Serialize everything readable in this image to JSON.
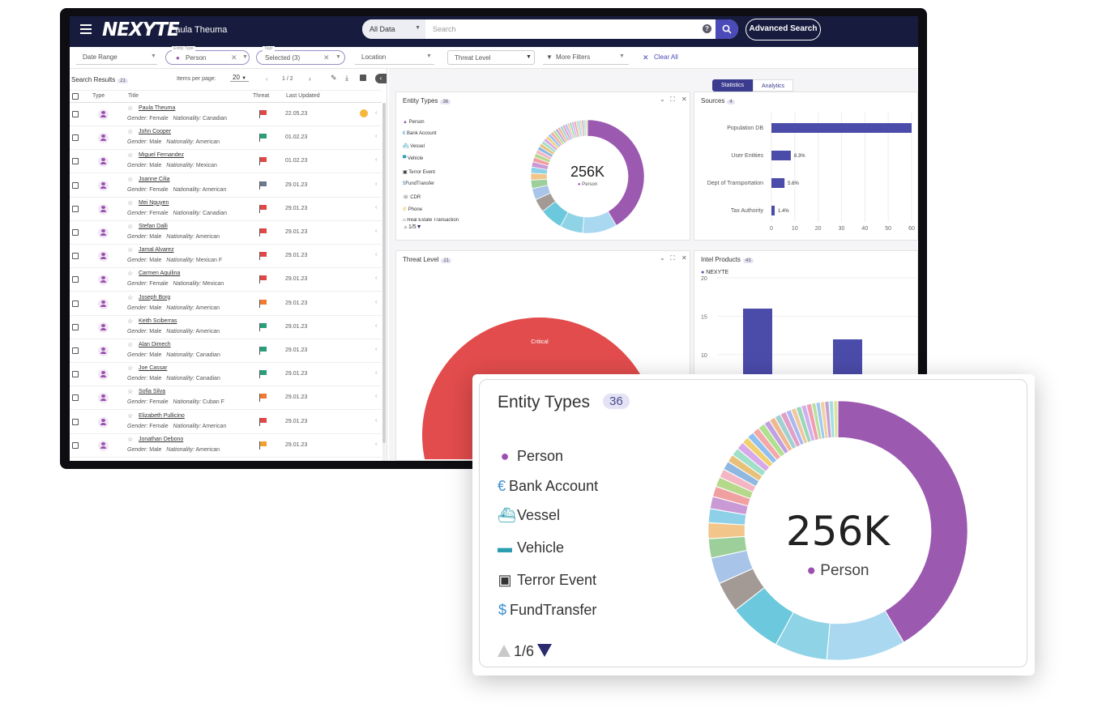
{
  "app": {
    "logo": "NEXYTE",
    "user": "Paula Theuma"
  },
  "search": {
    "scope": "All Data",
    "placeholder": "Search",
    "help": "?",
    "advanced": "Advanced Search"
  },
  "filters": {
    "date_range": "Date Range",
    "entity_type_label": "Entity Type",
    "entity_type_value": "Person",
    "tags_label": "Tags",
    "tags_value": "Selected (3)",
    "location": "Location",
    "threat_level": "Threat Level",
    "more_filters": "More Filters",
    "clear_all": "Clear All"
  },
  "results": {
    "title": "Search Results",
    "count": "21",
    "items_per_page_label": "Items per page:",
    "items_per_page": "20",
    "page": "1 / 2",
    "columns": [
      "Type",
      "Title",
      "Threat",
      "Last Updated"
    ],
    "rows": [
      {
        "name": "Paula Theuma",
        "gender": "Female",
        "nationality": "Canadian",
        "tail": "",
        "date": "22.05.23",
        "threat_color": "#e04848"
      },
      {
        "name": "John Cooper",
        "gender": "Male",
        "nationality": "American",
        "tail": "",
        "date": "01.02.23",
        "threat_color": "#2a9d7a"
      },
      {
        "name": "Miguel Fernandez",
        "gender": "Male",
        "nationality": "Mexican",
        "tail": "",
        "date": "01.02.23",
        "threat_color": "#e04848"
      },
      {
        "name": "Joanne Cilia",
        "gender": "Female",
        "nationality": "American",
        "tail": "",
        "date": "29.01.23",
        "threat_color": "#6b7a8f"
      },
      {
        "name": "Mei Nguyen",
        "gender": "Female",
        "nationality": "Canadian",
        "tail": "",
        "date": "29.01.23",
        "threat_color": "#e04848"
      },
      {
        "name": "Stefan Dalli",
        "gender": "Male",
        "nationality": "American",
        "tail": "",
        "date": "29.01.23",
        "threat_color": "#e04848"
      },
      {
        "name": "Jamal Alvarez",
        "gender": "Male",
        "nationality": "Mexican",
        "tail": "F",
        "date": "29.01.23",
        "threat_color": "#e04848"
      },
      {
        "name": "Carmen Aquilina",
        "gender": "Female",
        "nationality": "Mexican",
        "tail": "",
        "date": "29.01.23",
        "threat_color": "#e04848"
      },
      {
        "name": "Joseph Borg",
        "gender": "Male",
        "nationality": "American",
        "tail": "",
        "date": "29.01.23",
        "threat_color": "#f07a30"
      },
      {
        "name": "Keith Sciberras",
        "gender": "Male",
        "nationality": "American",
        "tail": "",
        "date": "29.01.23",
        "threat_color": "#2a9d7a"
      },
      {
        "name": "Alan Dimech",
        "gender": "Male",
        "nationality": "Canadian",
        "tail": "",
        "date": "29.01.23",
        "threat_color": "#2a9d7a"
      },
      {
        "name": "Joe Cassar",
        "gender": "Male",
        "nationality": "Canadian",
        "tail": "",
        "date": "29.01.23",
        "threat_color": "#2a9d7a"
      },
      {
        "name": "Sofia Silva",
        "gender": "Female",
        "nationality": "Cuban",
        "tail": "F",
        "date": "29.01.23",
        "threat_color": "#f07a30"
      },
      {
        "name": "Elizabeth Pullicino",
        "gender": "Female",
        "nationality": "American",
        "tail": "",
        "date": "29.01.23",
        "threat_color": "#e04848"
      },
      {
        "name": "Jonathan Debono",
        "gender": "Male",
        "nationality": "American",
        "tail": "",
        "date": "29.01.23",
        "threat_color": "#f0a030"
      }
    ],
    "labels": {
      "gender": "Gender:",
      "nationality": "Nationality:"
    }
  },
  "dashboard": {
    "tabs": [
      "Statistics",
      "Analytics"
    ],
    "entity_card": {
      "title": "Entity Types",
      "count": "36",
      "legend": [
        "Person",
        "Bank Account",
        "Vessel",
        "Vehicle",
        "Terror Event",
        "FundTransfer",
        "CDR",
        "Phone",
        "Real Estate Transaction"
      ],
      "center_value": "256K",
      "center_label": "Person",
      "pager": "1/5"
    },
    "sources_card": {
      "title": "Sources",
      "count": "4"
    },
    "threat_card": {
      "title": "Threat Level",
      "count": "21",
      "segment_label": "Critical"
    },
    "intel_card": {
      "title": "Intel Products",
      "count": "43",
      "legend": "NEXYTE"
    }
  },
  "zoom": {
    "title": "Entity Types",
    "count": "36",
    "legend": [
      "Person",
      "Bank Account",
      "Vessel",
      "Vehicle",
      "Terror Event",
      "FundTransfer"
    ],
    "center_value": "256K",
    "center_label": "Person",
    "pager": "1/6"
  },
  "chart_data": [
    {
      "type": "bar",
      "title": "Sources",
      "orientation": "horizontal",
      "categories": [
        "Population DB",
        "User Entities",
        "Dept of Transportation",
        "Tax Authority"
      ],
      "values": [
        60,
        8.3,
        5.6,
        1.4
      ],
      "data_labels": [
        "",
        "8.3%",
        "5.6%",
        "1.4%"
      ],
      "xlim": [
        0,
        60
      ],
      "xticks": [
        0,
        10,
        20,
        30,
        40,
        50,
        60
      ],
      "color": "#4b4baa"
    },
    {
      "type": "bar",
      "title": "Intel Products",
      "series": [
        {
          "name": "NEXYTE",
          "values": [
            16,
            12
          ]
        }
      ],
      "yticks": [
        10,
        15,
        20
      ],
      "ylim": [
        10,
        20
      ],
      "color": "#4b4baa"
    },
    {
      "type": "pie",
      "title": "Entity Types",
      "donut": true,
      "slices": [
        {
          "label": "Person",
          "value": 38,
          "color": "#9b59b0"
        },
        {
          "label": "s2",
          "value": 9,
          "color": "#a9d8f0"
        },
        {
          "label": "s3",
          "value": 6,
          "color": "#8fd4e6"
        },
        {
          "label": "s4",
          "value": 6,
          "color": "#6cc8dc"
        },
        {
          "label": "s5",
          "value": 3.5,
          "color": "#a39a96"
        },
        {
          "label": "s6",
          "value": 3,
          "color": "#a8c4e8"
        },
        {
          "label": "s7",
          "value": 2.2,
          "color": "#9ccf9a"
        },
        {
          "label": "s8",
          "value": 1.8,
          "color": "#f2c58a"
        },
        {
          "label": "s9",
          "value": 1.6,
          "color": "#8dd0e8"
        },
        {
          "label": "s10",
          "value": 1.4,
          "color": "#c99ad6"
        },
        {
          "label": "s11",
          "value": 1.2,
          "color": "#f0a0a0"
        },
        {
          "label": "s12",
          "value": 1.1,
          "color": "#b5d88a"
        },
        {
          "label": "s13",
          "value": 1.0,
          "color": "#f4b6c2"
        },
        {
          "label": "s14",
          "value": 1.0,
          "color": "#8fb8e0"
        },
        {
          "label": "s15",
          "value": 0.9,
          "color": "#e8c07a"
        },
        {
          "label": "s16",
          "value": 0.9,
          "color": "#a0e0c8"
        },
        {
          "label": "s17",
          "value": 0.9,
          "color": "#d8a8e8"
        },
        {
          "label": "s18",
          "value": 0.8,
          "color": "#f0d070"
        },
        {
          "label": "s19",
          "value": 0.8,
          "color": "#90c0f0"
        },
        {
          "label": "s20",
          "value": 0.8,
          "color": "#f4a8a8"
        },
        {
          "label": "s21",
          "value": 0.8,
          "color": "#b0e090"
        },
        {
          "label": "s22",
          "value": 0.7,
          "color": "#c0a0e0"
        },
        {
          "label": "s23",
          "value": 0.7,
          "color": "#f0b890"
        },
        {
          "label": "s24",
          "value": 0.7,
          "color": "#a0d0d0"
        },
        {
          "label": "s25",
          "value": 0.7,
          "color": "#e0a0c8"
        },
        {
          "label": "s26",
          "value": 0.6,
          "color": "#a8b8f0"
        },
        {
          "label": "s27",
          "value": 0.6,
          "color": "#f0c8a0"
        },
        {
          "label": "s28",
          "value": 0.6,
          "color": "#98d8b8"
        },
        {
          "label": "s29",
          "value": 0.6,
          "color": "#d0b0f0"
        },
        {
          "label": "s30",
          "value": 0.6,
          "color": "#f0a0b0"
        },
        {
          "label": "s31",
          "value": 0.5,
          "color": "#b8e0a0"
        },
        {
          "label": "s32",
          "value": 0.5,
          "color": "#a0c8f0"
        },
        {
          "label": "s33",
          "value": 0.5,
          "color": "#f0d0a0"
        },
        {
          "label": "s34",
          "value": 0.5,
          "color": "#c8a0d0"
        },
        {
          "label": "s35",
          "value": 0.5,
          "color": "#a0e0e0"
        },
        {
          "label": "s36",
          "value": 0.5,
          "color": "#e0e0a0"
        }
      ]
    }
  ]
}
